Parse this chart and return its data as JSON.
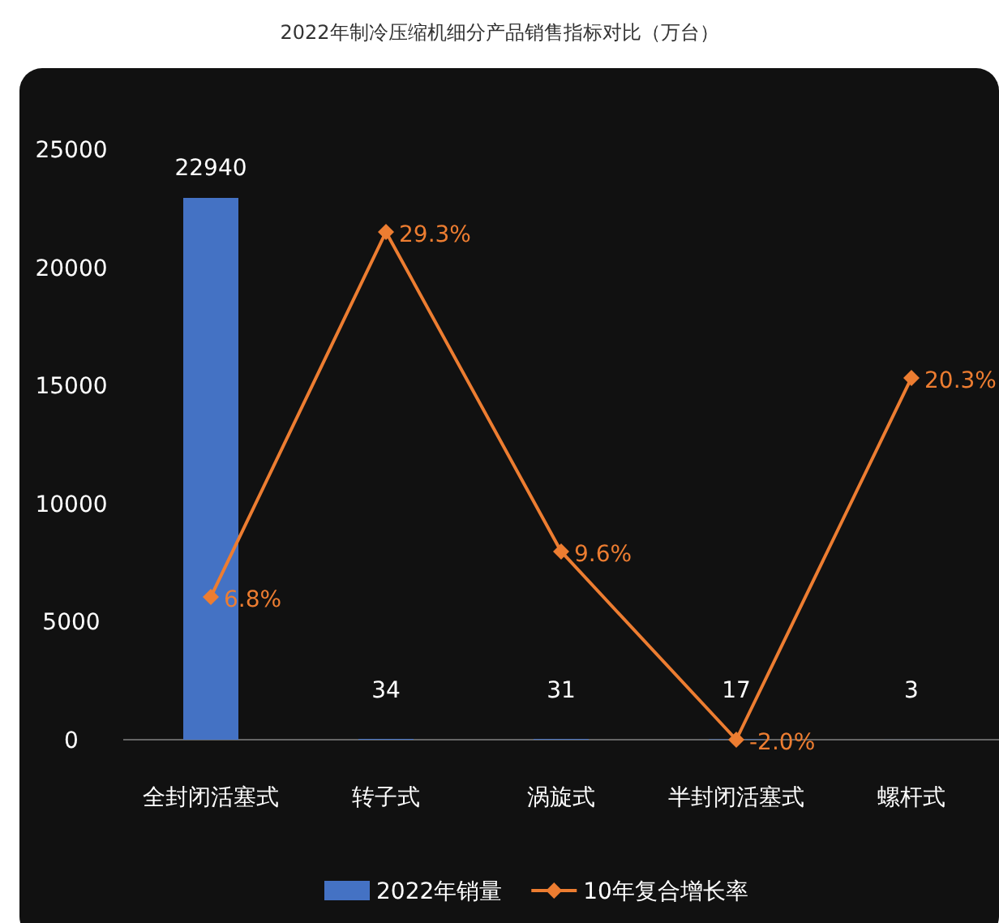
{
  "chart_data": {
    "type": "bar",
    "title": "2022年制冷压缩机细分产品销售指标对比（万台）",
    "categories": [
      "全封闭活塞式",
      "转子式",
      "涡旋式",
      "半封闭活塞式",
      "螺杆式"
    ],
    "ylim": [
      0,
      25000
    ],
    "yticks": [
      0,
      5000,
      10000,
      15000,
      20000,
      25000
    ],
    "legend": "bottom",
    "grid": false,
    "series": [
      {
        "name": "2022年销量",
        "color": "#4472c4",
        "values": [
          22940,
          34,
          31,
          17,
          3
        ],
        "value_labels": [
          "22940",
          "34",
          "31",
          "17",
          "3"
        ]
      },
      {
        "name": "10年复合增长率",
        "type": "line",
        "axis": "y2",
        "color": "#ed7d31",
        "marker": "diamond",
        "values": [
          6.8,
          29.3,
          9.6,
          -2.0,
          20.3
        ],
        "value_labels": [
          "6.8%",
          "29.3%",
          "9.6%",
          "-2.0%",
          "20.3%"
        ]
      }
    ]
  }
}
